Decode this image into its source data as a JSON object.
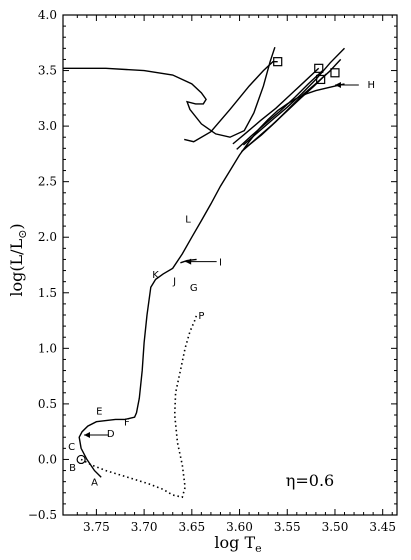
{
  "chart_data": {
    "type": "line",
    "title": "",
    "xlabel": "log T",
    "xlabel_sub": "e",
    "ylabel": "log(L/L",
    "ylabel_sub": "⊙",
    "ylabel_close": ")",
    "xlim": [
      3.785,
      3.435
    ],
    "ylim": [
      -0.5,
      4.0
    ],
    "x_reversed": true,
    "x_ticks": [
      3.75,
      3.7,
      3.65,
      3.6,
      3.55,
      3.5,
      3.45
    ],
    "x_tick_labels": [
      "3.75",
      "3.70",
      "3.65",
      "3.60",
      "3.55",
      "3.50",
      "3.45"
    ],
    "y_ticks": [
      -0.5,
      0.0,
      0.5,
      1.0,
      1.5,
      2.0,
      2.5,
      3.0,
      3.5,
      4.0
    ],
    "y_tick_labels": [
      "−0.5",
      "0.0",
      "0.5",
      "1.0",
      "1.5",
      "2.0",
      "2.5",
      "3.0",
      "3.5",
      "4.0"
    ],
    "grid": false,
    "annotation": "η=0.6",
    "series": [
      {
        "style": "solid",
        "x": [
          3.745,
          3.752,
          3.76,
          3.766,
          3.768,
          3.765,
          3.759,
          3.75,
          3.74,
          3.73,
          3.72,
          3.715,
          3.71,
          3.708,
          3.705,
          3.702,
          3.7,
          3.697,
          3.693,
          3.688,
          3.68,
          3.67,
          3.66,
          3.65,
          3.64,
          3.63,
          3.62,
          3.61,
          3.6,
          3.59,
          3.58,
          3.57,
          3.56,
          3.55,
          3.54,
          3.53,
          3.52,
          3.51,
          3.5,
          3.49
        ],
        "y": [
          -0.16,
          -0.1,
          0.0,
          0.1,
          0.2,
          0.25,
          0.3,
          0.34,
          0.35,
          0.36,
          0.36,
          0.37,
          0.38,
          0.42,
          0.55,
          0.8,
          1.05,
          1.3,
          1.55,
          1.62,
          1.67,
          1.72,
          1.85,
          2.0,
          2.15,
          2.3,
          2.46,
          2.6,
          2.74,
          2.86,
          2.97,
          3.06,
          3.14,
          3.2,
          3.25,
          3.29,
          3.32,
          3.34,
          3.36,
          3.38
        ]
      },
      {
        "style": "dotted",
        "x": [
          3.766,
          3.755,
          3.74,
          3.725,
          3.71,
          3.695,
          3.68,
          3.67,
          3.66,
          3.657,
          3.66,
          3.665,
          3.668,
          3.667,
          3.662,
          3.657,
          3.652,
          3.647,
          3.645
        ],
        "y": [
          0.0,
          -0.05,
          -0.1,
          -0.14,
          -0.18,
          -0.22,
          -0.27,
          -0.32,
          -0.34,
          -0.25,
          -0.05,
          0.15,
          0.4,
          0.6,
          0.8,
          1.0,
          1.15,
          1.25,
          1.3
        ]
      },
      {
        "style": "solid",
        "x": [
          3.662,
          3.655,
          3.645
        ],
        "y": [
          1.77,
          1.79,
          1.8
        ]
      },
      {
        "style": "solid",
        "x": [
          3.785,
          3.74,
          3.7,
          3.67,
          3.65,
          3.64,
          3.635,
          3.638,
          3.646,
          3.655,
          3.652,
          3.64,
          3.625,
          3.61,
          3.595,
          3.585,
          3.575,
          3.568,
          3.563
        ],
        "y": [
          3.52,
          3.52,
          3.5,
          3.46,
          3.38,
          3.3,
          3.24,
          3.2,
          3.2,
          3.22,
          3.15,
          3.02,
          2.93,
          2.9,
          2.96,
          3.12,
          3.36,
          3.58,
          3.71
        ]
      },
      {
        "style": "solid",
        "x": [
          3.658,
          3.648,
          3.63,
          3.61,
          3.59,
          3.575,
          3.565,
          3.56
        ],
        "y": [
          2.88,
          2.86,
          2.95,
          3.15,
          3.36,
          3.5,
          3.58,
          3.58
        ]
      },
      {
        "style": "solid",
        "x": [
          3.607,
          3.593,
          3.578,
          3.562,
          3.547,
          3.532,
          3.517
        ],
        "y": [
          2.84,
          2.94,
          3.05,
          3.16,
          3.28,
          3.4,
          3.52
        ]
      },
      {
        "style": "solid",
        "x": [
          3.603,
          3.588,
          3.572,
          3.557,
          3.542,
          3.528,
          3.513
        ],
        "y": [
          2.79,
          2.91,
          3.03,
          3.14,
          3.26,
          3.38,
          3.5
        ]
      },
      {
        "style": "solid",
        "x": [
          3.598,
          3.582,
          3.566,
          3.551,
          3.536,
          3.522,
          3.509
        ],
        "y": [
          2.77,
          2.89,
          3.01,
          3.13,
          3.25,
          3.36,
          3.47
        ]
      },
      {
        "style": "solid",
        "x": [
          3.596,
          3.58,
          3.565,
          3.55,
          3.535,
          3.52,
          3.505,
          3.49
        ],
        "y": [
          2.83,
          2.95,
          3.06,
          3.17,
          3.29,
          3.42,
          3.57,
          3.7
        ]
      },
      {
        "style": "solid",
        "x": [
          3.593,
          3.577,
          3.562,
          3.548,
          3.534,
          3.519,
          3.506,
          3.494
        ],
        "y": [
          2.81,
          2.92,
          3.04,
          3.16,
          3.28,
          3.39,
          3.49,
          3.6
        ]
      }
    ],
    "markers": [
      {
        "shape": "circle",
        "x": 3.766,
        "y": 0.0
      },
      {
        "shape": "square",
        "x": 3.56,
        "y": 3.58
      },
      {
        "shape": "square",
        "x": 3.517,
        "y": 3.52
      },
      {
        "shape": "square",
        "x": 3.5,
        "y": 3.48
      },
      {
        "shape": "square",
        "x": 3.515,
        "y": 3.42
      }
    ],
    "point_labels": [
      {
        "text": "A",
        "x": 3.752,
        "y": -0.2
      },
      {
        "text": "B",
        "x": 3.775,
        "y": -0.07
      },
      {
        "text": "C",
        "x": 3.776,
        "y": 0.12
      },
      {
        "text": "D",
        "x": 3.735,
        "y": 0.24
      },
      {
        "text": "E",
        "x": 3.747,
        "y": 0.44
      },
      {
        "text": "F",
        "x": 3.718,
        "y": 0.34
      },
      {
        "text": "G",
        "x": 3.648,
        "y": 1.55
      },
      {
        "text": "H",
        "x": 3.462,
        "y": 3.38
      },
      {
        "text": "I",
        "x": 3.62,
        "y": 1.78
      },
      {
        "text": "J",
        "x": 3.668,
        "y": 1.61
      },
      {
        "text": "K",
        "x": 3.688,
        "y": 1.67
      },
      {
        "text": "L",
        "x": 3.654,
        "y": 2.17
      },
      {
        "text": "P",
        "x": 3.64,
        "y": 1.3
      }
    ],
    "arrows": [
      {
        "from_x": 3.737,
        "from_y": 0.22,
        "to_x": 3.763,
        "to_y": 0.22
      },
      {
        "from_x": 3.475,
        "from_y": 3.37,
        "to_x": 3.5,
        "to_y": 3.37
      },
      {
        "from_x": 3.624,
        "from_y": 1.78,
        "to_x": 3.657,
        "to_y": 1.78
      }
    ]
  }
}
